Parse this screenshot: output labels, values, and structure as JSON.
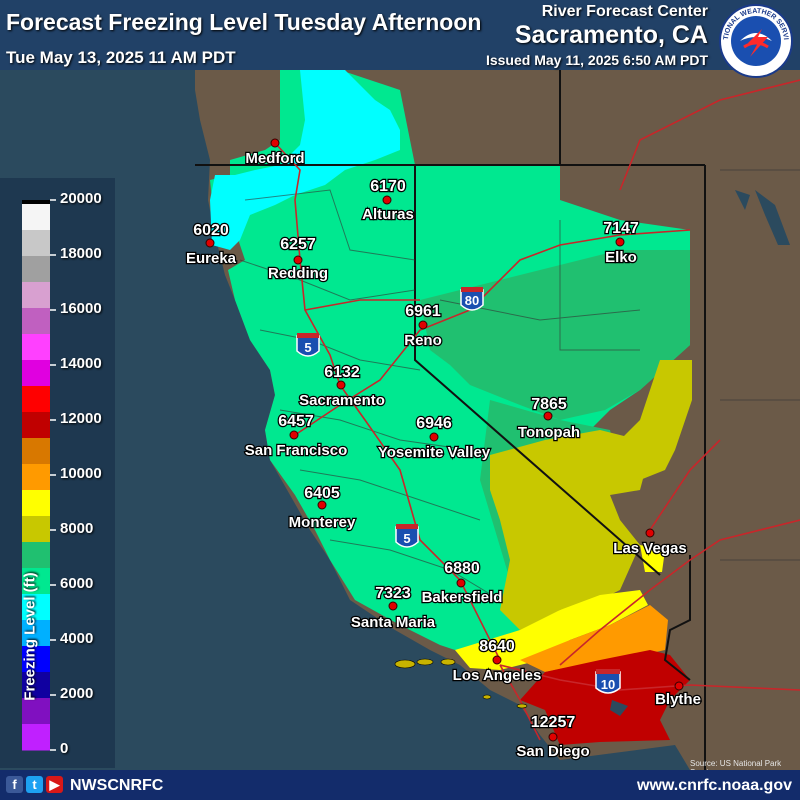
{
  "header": {
    "title": "Forecast Freezing Level Tuesday Afternoon",
    "valid_time": "Tue May 13, 2025 11 AM PDT",
    "rfc_label": "River Forecast Center",
    "rfc_city": "Sacramento, CA",
    "issued": "Issued May 11, 2025 6:50 AM PDT",
    "logo_text": "NATIONAL WEATHER SERVICE"
  },
  "legend": {
    "title": "Freezing Level (ft)",
    "ticks": [
      "20000",
      "18000",
      "16000",
      "14000",
      "12000",
      "10000",
      "8000",
      "6000",
      "4000",
      "2000",
      "0"
    ],
    "colors_top_to_bottom": [
      "#000000",
      "#f5f5f5",
      "#c8c8c8",
      "#a0a0a0",
      "#d8a0d0",
      "#c060c0",
      "#ff40ff",
      "#e000e0",
      "#ff0000",
      "#c00000",
      "#d87800",
      "#ff9a00",
      "#ffff00",
      "#c8c800",
      "#20c070",
      "#00e890",
      "#00ffff",
      "#00b0ff",
      "#0000ff",
      "#1000a0",
      "#8010c0",
      "#c020ff"
    ]
  },
  "cities": [
    {
      "name": "Medford",
      "value": ""
    },
    {
      "name": "Alturas",
      "value": "6170"
    },
    {
      "name": "Eureka",
      "value": "6020"
    },
    {
      "name": "Redding",
      "value": "6257"
    },
    {
      "name": "Elko",
      "value": "7147"
    },
    {
      "name": "Reno",
      "value": "6961"
    },
    {
      "name": "Sacramento",
      "value": "6132"
    },
    {
      "name": "Tonopah",
      "value": "7865"
    },
    {
      "name": "San Francisco",
      "value": "6457"
    },
    {
      "name": "Yosemite Valley",
      "value": "6946"
    },
    {
      "name": "Monterey",
      "value": "6405"
    },
    {
      "name": "Las Vegas",
      "value": ""
    },
    {
      "name": "Bakersfield",
      "value": "6880"
    },
    {
      "name": "Santa Maria",
      "value": "7323"
    },
    {
      "name": "Los Angeles",
      "value": "8640"
    },
    {
      "name": "Blythe",
      "value": ""
    },
    {
      "name": "San Diego",
      "value": "12257"
    }
  ],
  "interstates": [
    "80",
    "5",
    "5",
    "10"
  ],
  "colors": {
    "ocean": "#2b4a5e",
    "land": "#6b5a48",
    "green_dark": "#20c070",
    "green_light": "#00e890",
    "cyan": "#00ffff",
    "olive": "#c8c800",
    "yellow": "#ffff00",
    "orange": "#ff9a00",
    "orange_dark": "#d87800",
    "red": "#c00000",
    "footer": "#132c6b",
    "interstate": "#1a4fb0"
  },
  "footer": {
    "social_handle": "NWSCNRFC",
    "website": "www.cnrfc.noaa.gov",
    "source_credit": "Source: US National Park Service",
    "social_icons": [
      "facebook-icon",
      "twitter-icon",
      "youtube-icon"
    ]
  }
}
